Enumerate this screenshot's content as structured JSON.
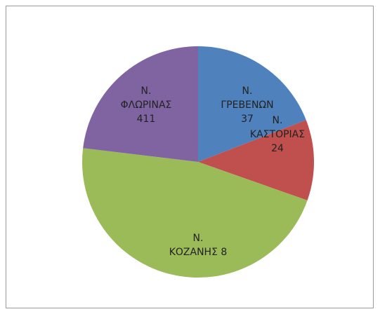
{
  "chart_data": {
    "type": "pie",
    "categories": [
      "Ν.\nΓΡΕΒΕΝΩΝ\n37",
      "Ν.\nΚΑΣΤΟΡΙΑΣ\n24",
      "Ν.\nΚΟΖΑΝΗΣ 8",
      "Ν.\nΦΛΩΡΙΝΑΣ\n411"
    ],
    "values": [
      19.1,
      11.3,
      46.5,
      23.1
    ],
    "colors": [
      "#4f81bd",
      "#c0504d",
      "#9bbb59",
      "#8064a2"
    ]
  }
}
